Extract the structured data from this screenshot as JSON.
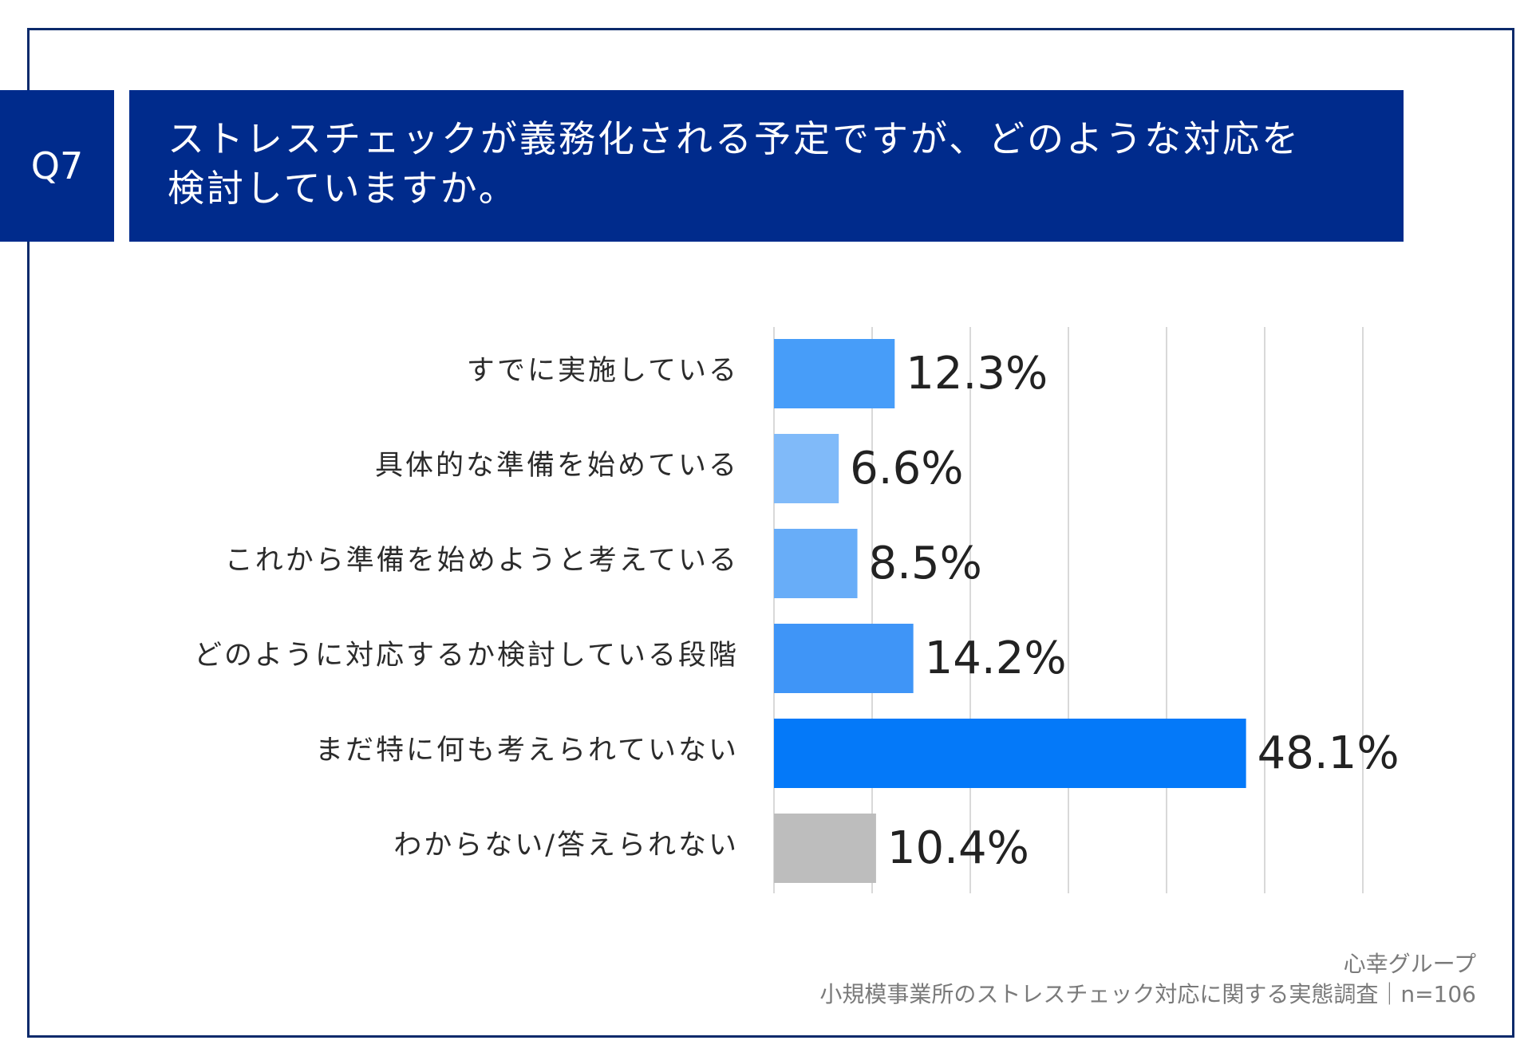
{
  "question": {
    "number": "Q7",
    "title_line1": "ストレスチェックが義務化される予定ですが、どのような対応を",
    "title_line2": "検討していますか。"
  },
  "chart_data": {
    "type": "bar",
    "orientation": "horizontal",
    "categories": [
      "すでに実施している",
      "具体的な準備を始めている",
      "これから準備を始めようと考えている",
      "どのように対応するか検討している段階",
      "まだ特に何も考えられていない",
      "わからない/答えられない"
    ],
    "values": [
      12.3,
      6.6,
      8.5,
      14.2,
      48.1,
      10.4
    ],
    "value_labels": [
      "12.3%",
      "6.6%",
      "8.5%",
      "14.2%",
      "48.1%",
      "10.4%"
    ],
    "bar_colors": [
      "#479df9",
      "#80baf9",
      "#68adf8",
      "#3f95f7",
      "#0479f9",
      "#bdbdbd"
    ],
    "xlim": [
      0,
      60
    ],
    "x_grid_step": 10,
    "grid": true,
    "unit": "%"
  },
  "footer": {
    "source_org": "心幸グループ",
    "source_survey": "小規模事業所のストレスチェック対応に関する実態調査｜n=106"
  }
}
